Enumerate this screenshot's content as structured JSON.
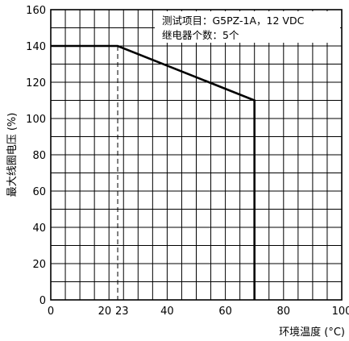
{
  "chart_data": {
    "type": "line",
    "xlabel": "环境温度 (°C)",
    "ylabel": "最大线圈电压 (%)",
    "xlim": [
      0,
      100
    ],
    "ylim": [
      0,
      160
    ],
    "x_ticks": [
      "0",
      "20",
      "23",
      "40",
      "60",
      "80",
      "100"
    ],
    "x_tick_values": [
      0,
      20,
      23,
      40,
      60,
      80,
      100
    ],
    "y_ticks": [
      "0",
      "20",
      "40",
      "60",
      "80",
      "100",
      "120",
      "140",
      "160"
    ],
    "y_tick_values": [
      0,
      20,
      40,
      60,
      80,
      100,
      120,
      140,
      160
    ],
    "grid": true,
    "grid_x_step": 5,
    "grid_y_step": 10,
    "annotation_lines": [
      "测试项目：G5PZ-1A，12 VDC",
      "继电器个数：5个"
    ],
    "series": [
      {
        "x": [
          0,
          23,
          70,
          70
        ],
        "y": [
          140,
          140,
          110,
          0
        ]
      }
    ],
    "reference_line_x": 23,
    "colors": {
      "line": "#000000",
      "grid": "#000000",
      "background": "#ffffff"
    }
  }
}
